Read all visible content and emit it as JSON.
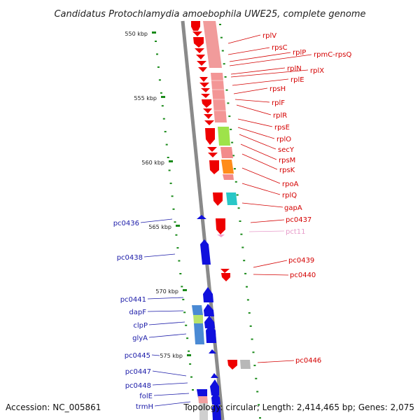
{
  "title": "Candidatus Protochlamydia amoebophila UWE25, complete genome",
  "footer": {
    "accession": "Accession: NC_005861",
    "summary": "Topology: circular; Length: 2,414,465 bp; Genes: 2,075"
  },
  "ticks": [
    "550 kbp",
    "555 kbp",
    "560 kbp",
    "565 kbp",
    "570 kbp",
    "575 kbp"
  ],
  "right_labels": [
    {
      "text": "rplV",
      "color": "red"
    },
    {
      "text": "rpsC",
      "color": "red"
    },
    {
      "text": "rplP",
      "color": "red"
    },
    {
      "text": "rpmC-rpsQ",
      "color": "red"
    },
    {
      "text": "rplN",
      "color": "red"
    },
    {
      "text": "rplX",
      "color": "red"
    },
    {
      "text": "rplE",
      "color": "red"
    },
    {
      "text": "rpsH",
      "color": "red"
    },
    {
      "text": "rplF",
      "color": "red"
    },
    {
      "text": "rplR",
      "color": "red"
    },
    {
      "text": "rpsE",
      "color": "red"
    },
    {
      "text": "rplO",
      "color": "red"
    },
    {
      "text": "secY",
      "color": "red"
    },
    {
      "text": "rpsM",
      "color": "red"
    },
    {
      "text": "rpsK",
      "color": "red"
    },
    {
      "text": "rpoA",
      "color": "red"
    },
    {
      "text": "rplQ",
      "color": "red"
    },
    {
      "text": "gapA",
      "color": "red"
    },
    {
      "text": "pc0437",
      "color": "red"
    },
    {
      "text": "pct11",
      "color": "pink"
    },
    {
      "text": "pc0439",
      "color": "red"
    },
    {
      "text": "pc0440",
      "color": "red"
    },
    {
      "text": "pc0446",
      "color": "red"
    }
  ],
  "left_labels": [
    {
      "text": "pc0436",
      "color": "blue"
    },
    {
      "text": "pc0438",
      "color": "blue"
    },
    {
      "text": "pc0441",
      "color": "blue"
    },
    {
      "text": "dapF",
      "color": "blue"
    },
    {
      "text": "clpP",
      "color": "blue"
    },
    {
      "text": "glyA",
      "color": "blue"
    },
    {
      "text": "pc0445",
      "color": "blue"
    },
    {
      "text": "pc0447",
      "color": "blue"
    },
    {
      "text": "pc0448",
      "color": "blue"
    },
    {
      "text": "folE",
      "color": "blue"
    },
    {
      "text": "trmH",
      "color": "blue"
    }
  ],
  "colors": {
    "red": "#ee0000",
    "blue": "#1010dd",
    "pink": "#f2a0cf",
    "salmon": "#f08a8a",
    "green_tick": "#1a8a1a",
    "backbone": "#8a8a8a"
  }
}
